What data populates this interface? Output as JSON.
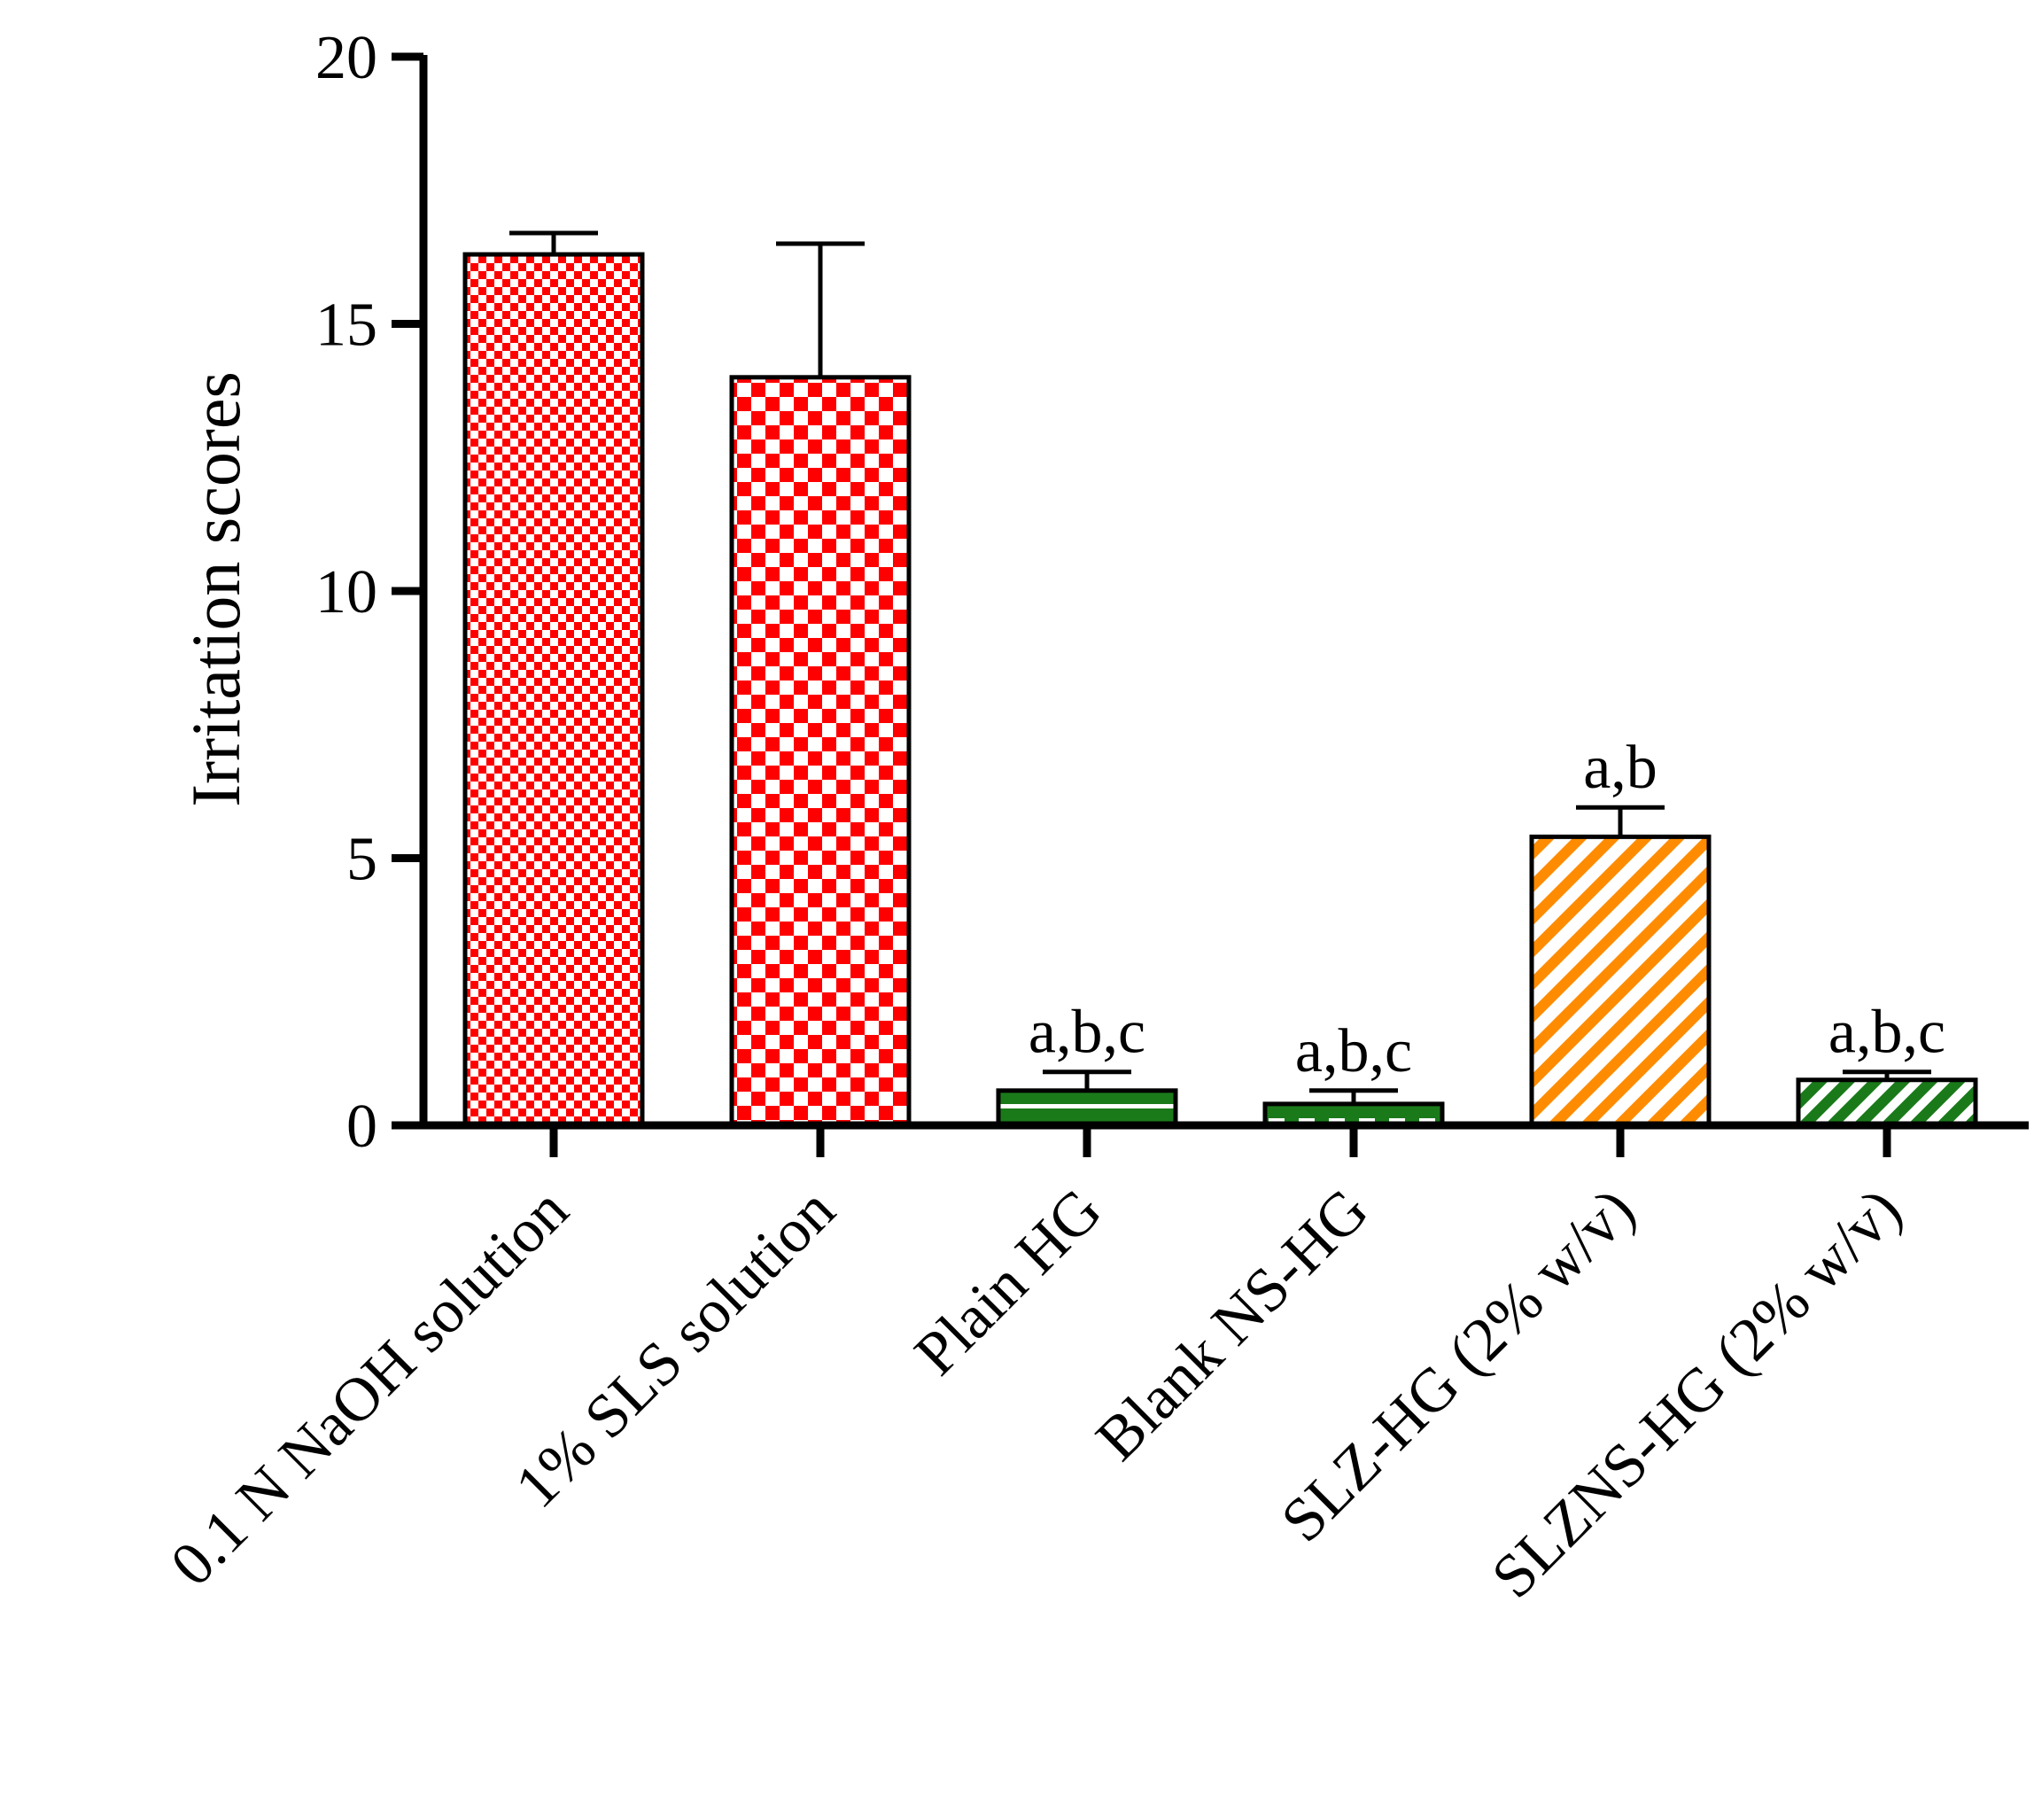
{
  "chart_data": {
    "type": "bar",
    "title": "",
    "xlabel": "",
    "ylabel": "Irritation scores",
    "ylim": [
      0,
      20
    ],
    "yticks": [
      0,
      5,
      10,
      15,
      20
    ],
    "yticks_labels": [
      "0",
      "5",
      "10",
      "15",
      "20"
    ],
    "grid": false,
    "legend": "none",
    "categories": [
      "0.1 N NaOH solution",
      "1% SLS solution",
      "Plain HG",
      "Blank NS-HG",
      "SLZ-HG (2% w/v)",
      "SLZNS-HG (2% w/v)"
    ],
    "values": [
      16.3,
      14.0,
      0.65,
      0.4,
      5.4,
      0.85
    ],
    "errors": [
      0.4,
      2.5,
      0.35,
      0.25,
      0.55,
      0.15
    ],
    "annotations": [
      "",
      "",
      "a,b,c",
      "a,b,c",
      "a,b",
      "a,b,c"
    ],
    "fills": [
      {
        "pattern": "checker-small",
        "color": "#ff0000"
      },
      {
        "pattern": "checker-large",
        "color": "#ff0000"
      },
      {
        "pattern": "horizontal-stripes",
        "color": "#1a7a1a"
      },
      {
        "pattern": "dashed-stripes",
        "color": "#1a7a1a"
      },
      {
        "pattern": "diagonal-stripes",
        "color": "#ff8c00"
      },
      {
        "pattern": "diagonal-stripes",
        "color": "#1a7a1a"
      }
    ]
  }
}
